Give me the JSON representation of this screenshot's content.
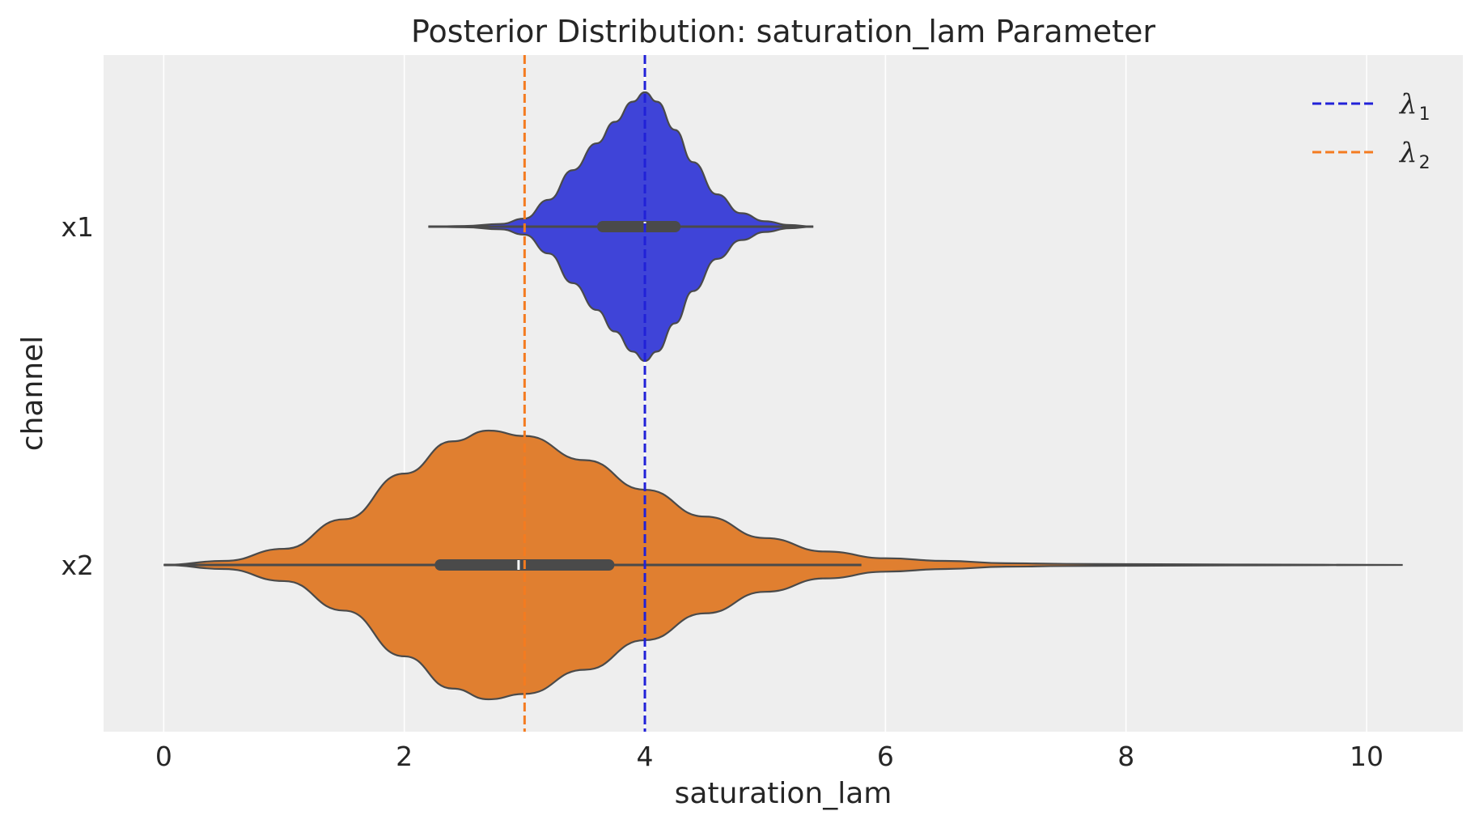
{
  "chart_data": {
    "type": "violin",
    "title": "Posterior Distribution: saturation_lam Parameter",
    "xlabel": "saturation_lam",
    "ylabel": "channel",
    "xlim": [
      -0.5,
      10.8
    ],
    "xticks": [
      0,
      2,
      4,
      6,
      8,
      10
    ],
    "xtick_labels": [
      "0",
      "2",
      "4",
      "6",
      "8",
      "10"
    ],
    "grid": true,
    "orientation": "horizontal",
    "categories": [
      "x1",
      "x2"
    ],
    "series": [
      {
        "name": "x1",
        "color": "#3f44d8",
        "min": 2.2,
        "max": 5.4,
        "q1": 3.65,
        "median": 4.0,
        "q3": 4.25,
        "whisker_low": 2.2,
        "whisker_high": 5.4,
        "density": [
          [
            2.2,
            0.0
          ],
          [
            2.5,
            0.005
          ],
          [
            2.8,
            0.02
          ],
          [
            3.0,
            0.06
          ],
          [
            3.2,
            0.2
          ],
          [
            3.4,
            0.42
          ],
          [
            3.6,
            0.62
          ],
          [
            3.75,
            0.78
          ],
          [
            3.9,
            0.93
          ],
          [
            4.0,
            1.0
          ],
          [
            4.1,
            0.93
          ],
          [
            4.25,
            0.72
          ],
          [
            4.4,
            0.48
          ],
          [
            4.6,
            0.24
          ],
          [
            4.8,
            0.1
          ],
          [
            5.0,
            0.04
          ],
          [
            5.2,
            0.012
          ],
          [
            5.4,
            0.0
          ]
        ]
      },
      {
        "name": "x2",
        "color": "#e07f30",
        "min": 0.0,
        "max": 10.3,
        "q1": 2.3,
        "median": 2.95,
        "q3": 3.7,
        "whisker_low": 0.0,
        "whisker_high": 5.8,
        "density": [
          [
            0.0,
            0.0
          ],
          [
            0.5,
            0.03
          ],
          [
            1.0,
            0.12
          ],
          [
            1.5,
            0.34
          ],
          [
            2.0,
            0.68
          ],
          [
            2.4,
            0.92
          ],
          [
            2.7,
            1.0
          ],
          [
            3.0,
            0.96
          ],
          [
            3.5,
            0.78
          ],
          [
            4.0,
            0.56
          ],
          [
            4.5,
            0.36
          ],
          [
            5.0,
            0.2
          ],
          [
            5.5,
            0.1
          ],
          [
            6.0,
            0.05
          ],
          [
            6.5,
            0.03
          ],
          [
            7.0,
            0.013
          ],
          [
            7.5,
            0.008
          ],
          [
            8.0,
            0.006
          ],
          [
            9.0,
            0.003
          ],
          [
            10.3,
            0.0
          ]
        ]
      }
    ],
    "reference_lines": [
      {
        "name": "λ",
        "sub": "1",
        "value": 4.0,
        "color": "#2121d8"
      },
      {
        "name": "λ",
        "sub": "2",
        "value": 3.0,
        "color": "#f47b20"
      }
    ],
    "legend_position": "top-right"
  }
}
